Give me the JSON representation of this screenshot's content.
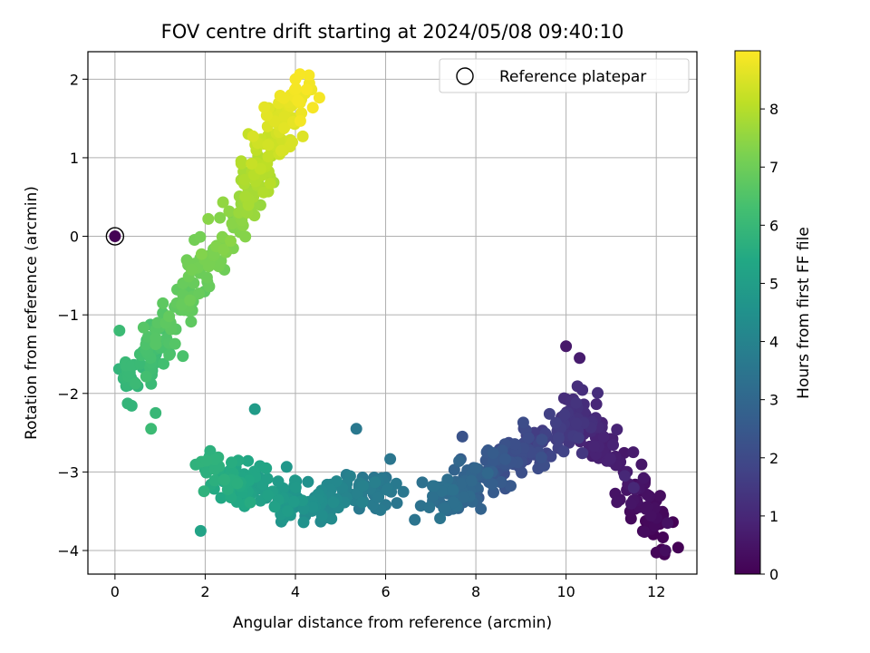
{
  "chart_data": {
    "type": "scatter",
    "title": "FOV centre drift starting at 2024/05/08 09:40:10",
    "xlabel": "Angular distance from reference (arcmin)",
    "ylabel": "Rotation from reference (arcmin)",
    "xlim": [
      -0.6,
      12.9
    ],
    "ylim": [
      -4.3,
      2.35
    ],
    "xticks": [
      0,
      2,
      4,
      6,
      8,
      10,
      12
    ],
    "yticks": [
      -4,
      -3,
      -2,
      -1,
      0,
      1,
      2
    ],
    "grid": true,
    "colorbar": {
      "label": "Hours from first FF file",
      "colormap": "viridis",
      "range": [
        0,
        9
      ],
      "ticks": [
        0,
        1,
        2,
        3,
        4,
        5,
        6,
        7,
        8
      ]
    },
    "legend": {
      "location": "top-right",
      "entries": [
        {
          "label": "Reference platepar",
          "marker": "open-circle"
        }
      ]
    },
    "reference_point": {
      "x": 0,
      "y": 0
    },
    "series": [
      {
        "segments": [
          {
            "t_start": 0.0,
            "t_end": 1.2,
            "x_start": 12.25,
            "y_start": -3.9,
            "x_end": 10.3,
            "y_end": -2.1
          },
          {
            "t_start": 1.2,
            "t_end": 2.6,
            "x_start": 10.3,
            "y_start": -2.3,
            "x_end": 8.3,
            "y_end": -3.05
          },
          {
            "t_start": 2.6,
            "t_end": 3.5,
            "x_start": 8.3,
            "y_start": -3.05,
            "x_end": 6.9,
            "y_end": -3.4
          },
          {
            "t_start": 3.5,
            "t_end": 4.5,
            "x_start": 6.0,
            "y_start": -3.25,
            "x_end": 4.2,
            "y_end": -3.4
          },
          {
            "t_start": 4.5,
            "t_end": 5.8,
            "x_start": 4.2,
            "y_start": -3.4,
            "x_end": 2.1,
            "y_end": -3.0
          },
          {
            "t_start": 5.8,
            "t_end": 6.5,
            "x_start": 0.3,
            "y_start": -1.9,
            "x_end": 1.0,
            "y_end": -1.3
          },
          {
            "t_start": 6.5,
            "t_end": 7.5,
            "x_start": 1.0,
            "y_start": -1.3,
            "x_end": 2.8,
            "y_end": 0.3
          },
          {
            "t_start": 7.5,
            "t_end": 8.95,
            "x_start": 2.8,
            "y_start": 0.3,
            "x_end": 4.1,
            "y_end": 1.9
          }
        ],
        "outliers": [
          {
            "x": 12.2,
            "y": -4.0,
            "t": 0.3
          },
          {
            "x": 12.25,
            "y": -3.65,
            "t": 0.4
          },
          {
            "x": 11.5,
            "y": -3.2,
            "t": 1.0
          },
          {
            "x": 11.3,
            "y": -3.05,
            "t": 1.0
          },
          {
            "x": 10.0,
            "y": -1.4,
            "t": 0.6
          },
          {
            "x": 10.3,
            "y": -1.55,
            "t": 0.7
          },
          {
            "x": 7.7,
            "y": -2.55,
            "t": 2.3
          },
          {
            "x": 5.35,
            "y": -2.45,
            "t": 3.6
          },
          {
            "x": 3.1,
            "y": -2.2,
            "t": 4.9
          },
          {
            "x": 1.9,
            "y": -3.75,
            "t": 5.2
          },
          {
            "x": 0.1,
            "y": -1.2,
            "t": 6.1
          },
          {
            "x": 0.9,
            "y": -2.25,
            "t": 6.0
          },
          {
            "x": 0.8,
            "y": -2.45,
            "t": 6.1
          },
          {
            "x": 4.3,
            "y": 2.05,
            "t": 8.9
          },
          {
            "x": 4.0,
            "y": 2.0,
            "t": 8.9
          }
        ]
      }
    ]
  }
}
